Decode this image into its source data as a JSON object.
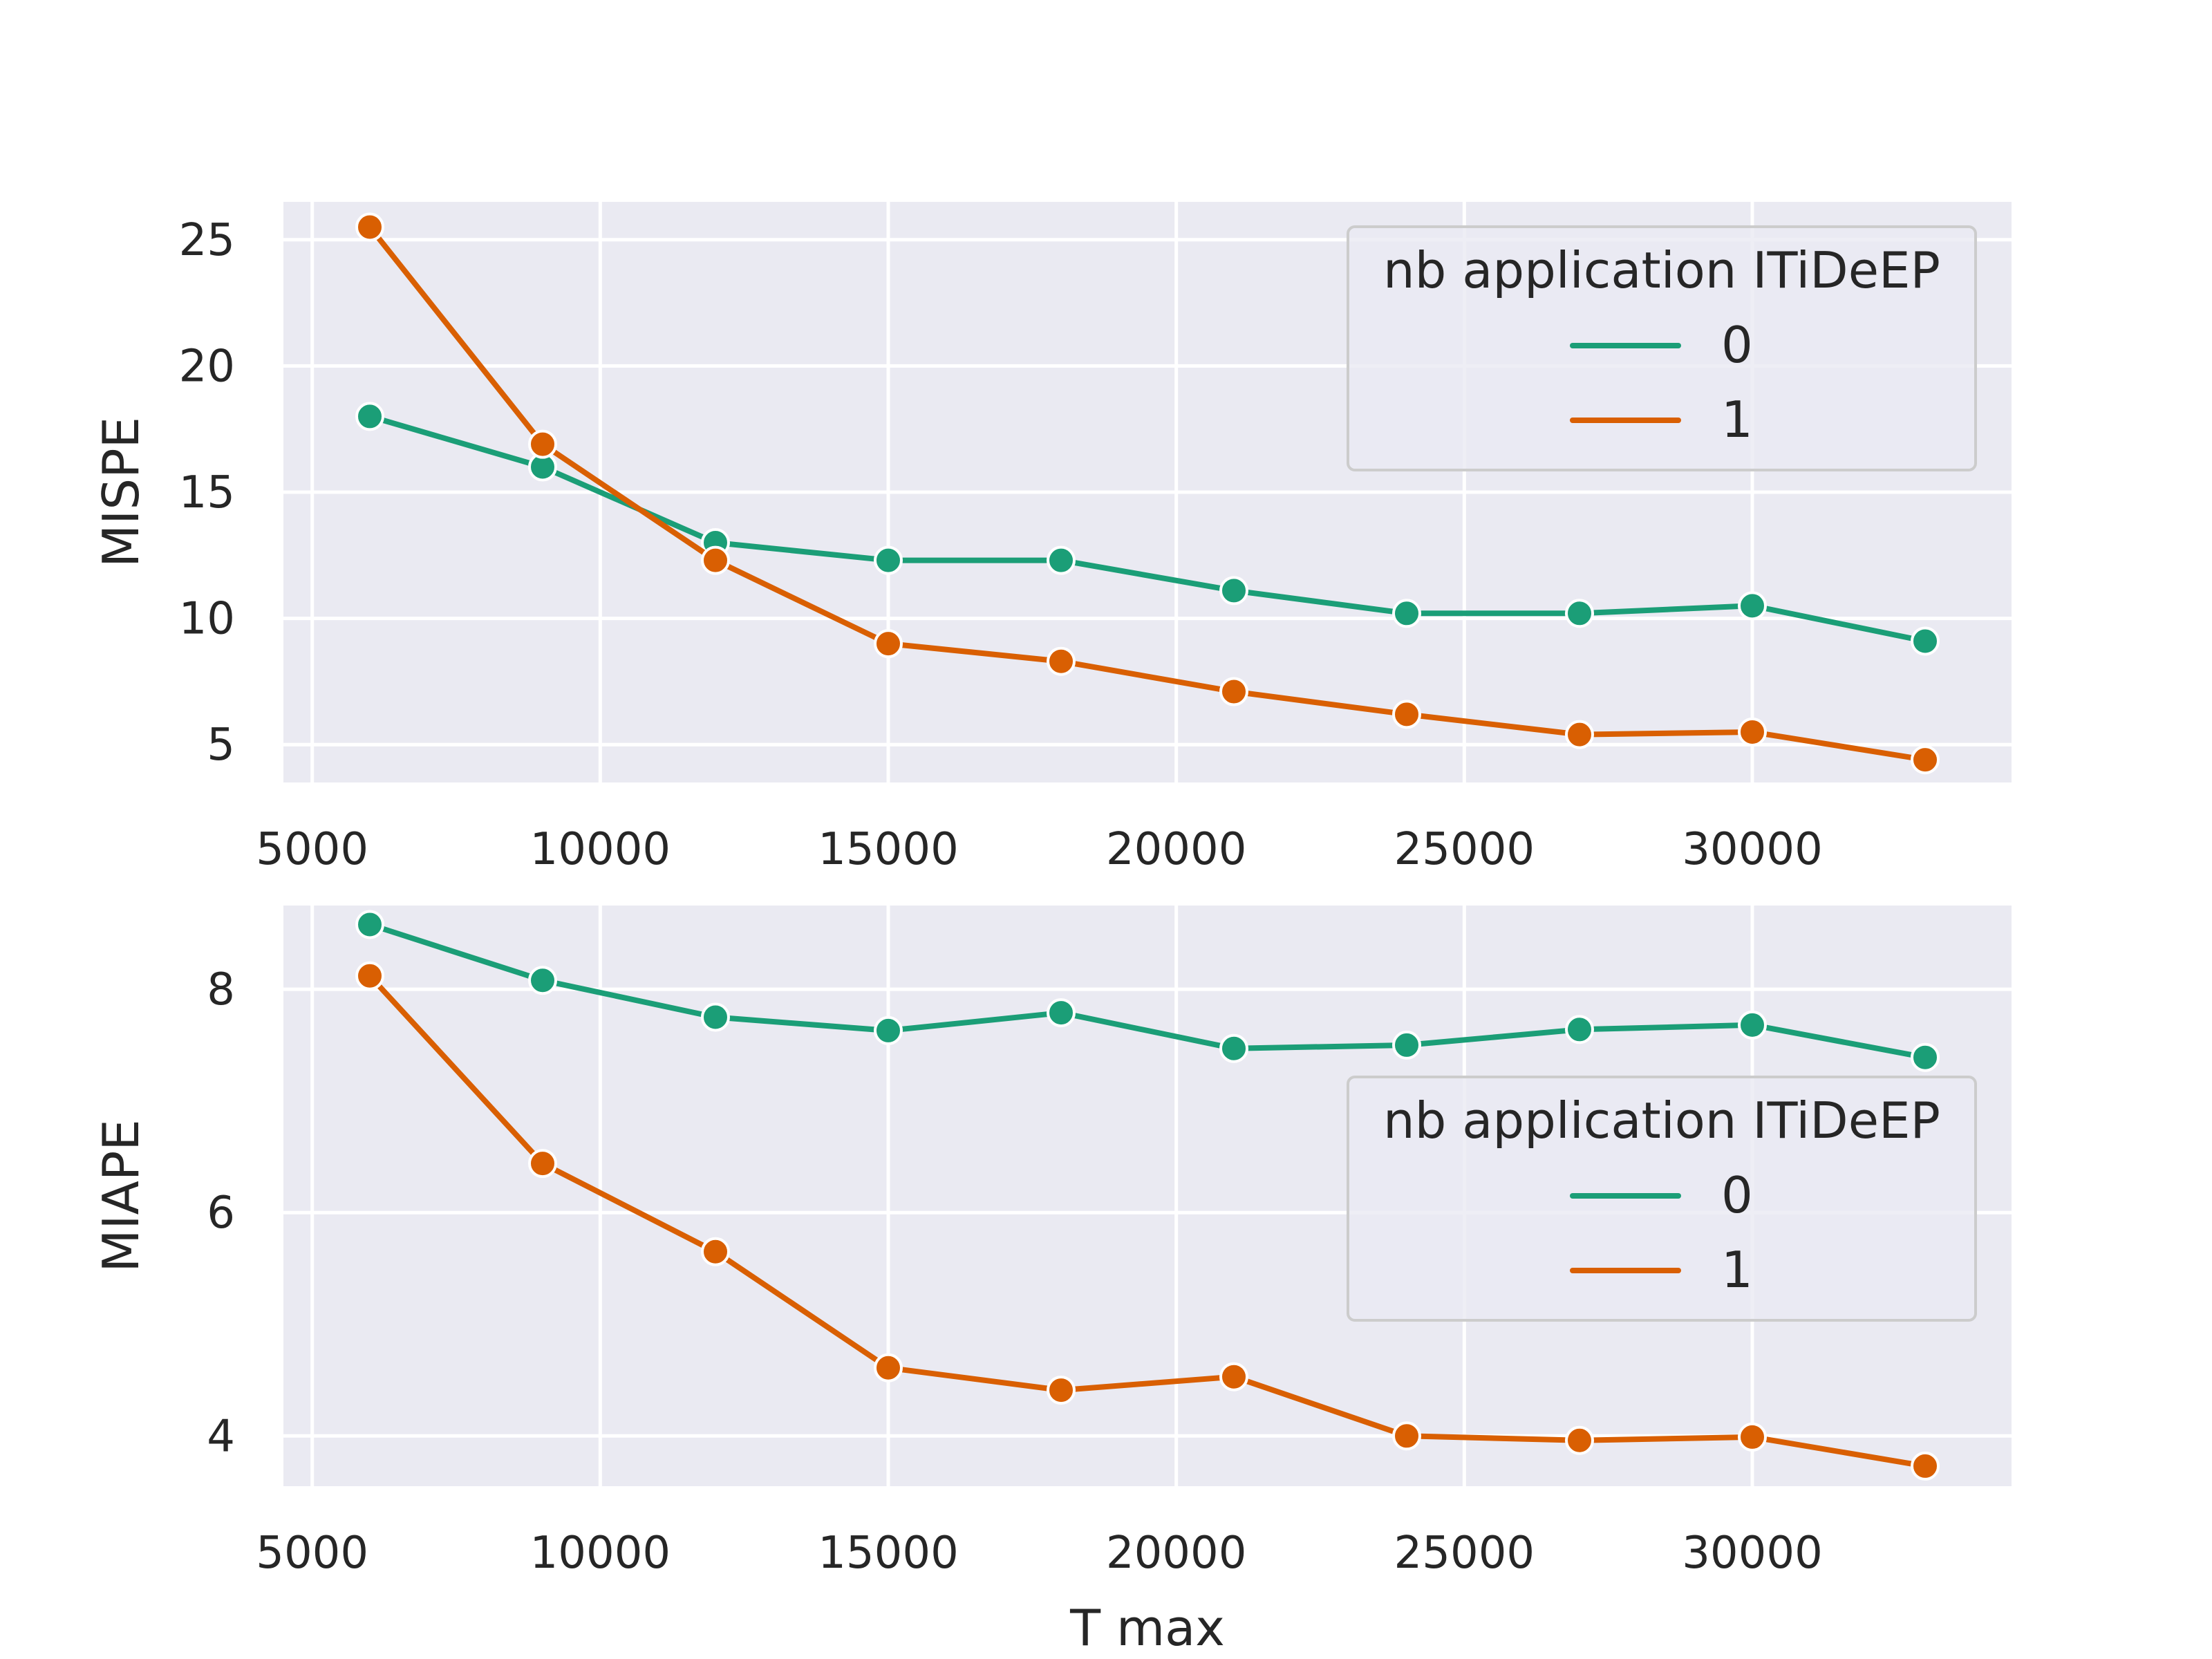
{
  "chart_data": [
    {
      "type": "line",
      "title": "",
      "xlabel": "",
      "ylabel": "MISPE",
      "xlim": [
        4500,
        34500
      ],
      "ylim": [
        3.5,
        26.5
      ],
      "xticks": [
        5000,
        10000,
        15000,
        20000,
        25000,
        30000
      ],
      "yticks": [
        5,
        10,
        15,
        20,
        25
      ],
      "grid": true,
      "legend": {
        "title": "nb application ITiDeEP",
        "placement": "upper right"
      },
      "x": [
        6000,
        9000,
        12000,
        15000,
        18000,
        21000,
        24000,
        27000,
        30000,
        33000
      ],
      "series": [
        {
          "name": "0",
          "color": "#1b9e77",
          "values": [
            18.0,
            16.0,
            13.0,
            12.3,
            12.3,
            11.1,
            10.2,
            10.2,
            10.5,
            9.1
          ]
        },
        {
          "name": "1",
          "color": "#d95f02",
          "values": [
            25.5,
            16.9,
            12.3,
            9.0,
            8.3,
            7.1,
            6.2,
            5.4,
            5.5,
            4.4
          ]
        }
      ]
    },
    {
      "type": "line",
      "title": "",
      "xlabel": "T max",
      "ylabel": "MIAPE",
      "xlim": [
        4500,
        34500
      ],
      "ylim": [
        3.55,
        8.75
      ],
      "xticks": [
        5000,
        10000,
        15000,
        20000,
        25000,
        30000
      ],
      "yticks": [
        4,
        6,
        8
      ],
      "grid": true,
      "legend": {
        "title": "nb application ITiDeEP",
        "placement": "center right"
      },
      "x": [
        6000,
        9000,
        12000,
        15000,
        18000,
        21000,
        24000,
        27000,
        30000,
        33000
      ],
      "series": [
        {
          "name": "0",
          "color": "#1b9e77",
          "values": [
            8.58,
            8.08,
            7.75,
            7.63,
            7.79,
            7.47,
            7.5,
            7.64,
            7.68,
            7.39
          ]
        },
        {
          "name": "1",
          "color": "#d95f02",
          "values": [
            8.12,
            6.44,
            5.65,
            4.61,
            4.41,
            4.53,
            4.0,
            3.96,
            3.99,
            3.73
          ]
        }
      ]
    }
  ]
}
